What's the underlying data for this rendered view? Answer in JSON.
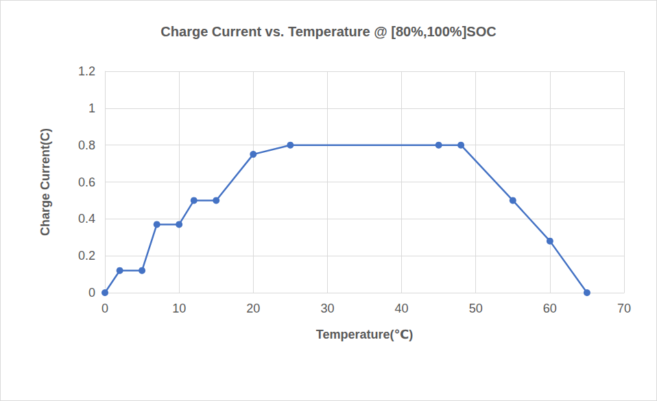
{
  "chart_data": {
    "type": "line",
    "title": "Charge Current vs. Temperature @ [80%,100%]SOC",
    "xlabel": "Temperature(℃)",
    "ylabel": "Charge Current(C)",
    "x": [
      0,
      2,
      5,
      7,
      10,
      12,
      15,
      20,
      25,
      45,
      48,
      55,
      60,
      65
    ],
    "values": [
      0,
      0.12,
      0.12,
      0.37,
      0.37,
      0.5,
      0.5,
      0.75,
      0.8,
      0.8,
      0.8,
      0.5,
      0.28,
      0
    ],
    "color": "#4472c4",
    "marker": "circle",
    "xlim": [
      0,
      70
    ],
    "xticks": [
      0,
      10,
      20,
      30,
      40,
      50,
      60,
      70
    ],
    "ylim": [
      0,
      1.2
    ],
    "yticks": [
      0,
      0.2,
      0.4,
      0.6,
      0.8,
      1,
      1.2
    ],
    "grid": true
  }
}
